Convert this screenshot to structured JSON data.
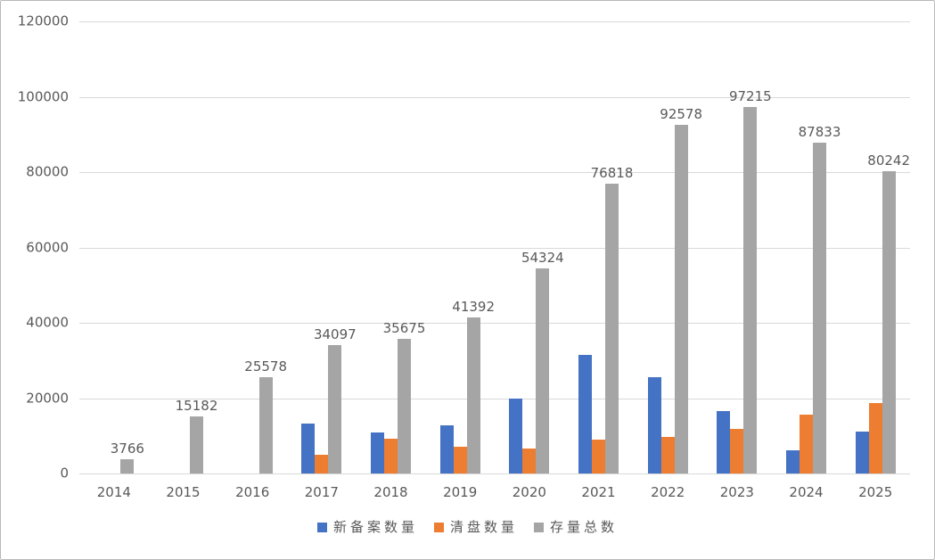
{
  "chart_data": {
    "type": "bar",
    "title": "",
    "xlabel": "",
    "ylabel": "",
    "categories": [
      "2014",
      "2015",
      "2016",
      "2017",
      "2018",
      "2019",
      "2020",
      "2021",
      "2022",
      "2023",
      "2024",
      "2025"
    ],
    "series": [
      {
        "id": "new-filings",
        "name": "新备案数量",
        "color": "#4472C4",
        "data_labels_visible": false,
        "values_estimated": true,
        "values": [
          0,
          0,
          0,
          13300,
          10800,
          12700,
          19900,
          31500,
          25500,
          16500,
          6200,
          11200
        ]
      },
      {
        "id": "liquidations",
        "name": "清盘数量",
        "color": "#ED7D31",
        "data_labels_visible": false,
        "values_estimated": true,
        "values": [
          0,
          0,
          0,
          4900,
          9300,
          7000,
          6700,
          9000,
          9700,
          11900,
          15700,
          18700
        ]
      },
      {
        "id": "total-stock",
        "name": "存量总数",
        "color": "#A5A5A5",
        "data_labels_visible": true,
        "values_estimated": false,
        "values": [
          3766,
          15182,
          25578,
          34097,
          35675,
          41392,
          54324,
          76818,
          92578,
          97215,
          87833,
          80242
        ]
      }
    ],
    "ylim": [
      0,
      120000
    ],
    "yticks": [
      0,
      20000,
      40000,
      60000,
      80000,
      100000,
      120000
    ],
    "grid": true,
    "legend_position": "bottom"
  },
  "style": {
    "axis_text_color": "#595959",
    "data_label_color": "#595959",
    "gridline_color": "#D9D9D9",
    "background": "#FFFFFF",
    "frame_border_color": "#B9B9B9"
  }
}
